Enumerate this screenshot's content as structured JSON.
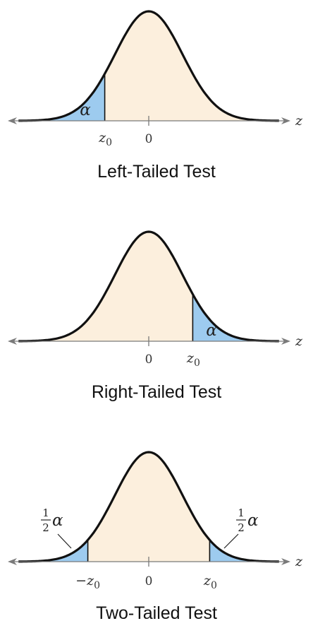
{
  "axis_variable": "z",
  "zero_label": "0",
  "critical_label": "z",
  "critical_subscript": "0",
  "neg_critical_prefix": "−z",
  "alpha_symbol": "α",
  "half_numerator": "1",
  "half_denominator": "2",
  "panels": [
    {
      "caption": "Left-Tailed Test",
      "tail": "left",
      "critical_value": -1.3
    },
    {
      "caption": "Right-Tailed Test",
      "tail": "right",
      "critical_value": 1.3
    },
    {
      "caption": "Two-Tailed Test",
      "tail": "two",
      "critical_value": 1.8
    }
  ],
  "colors": {
    "body_fill": "#fcefdd",
    "tail_fill": "#9dcbef",
    "curve": "#111111",
    "axis": "#7a7a7a"
  }
}
